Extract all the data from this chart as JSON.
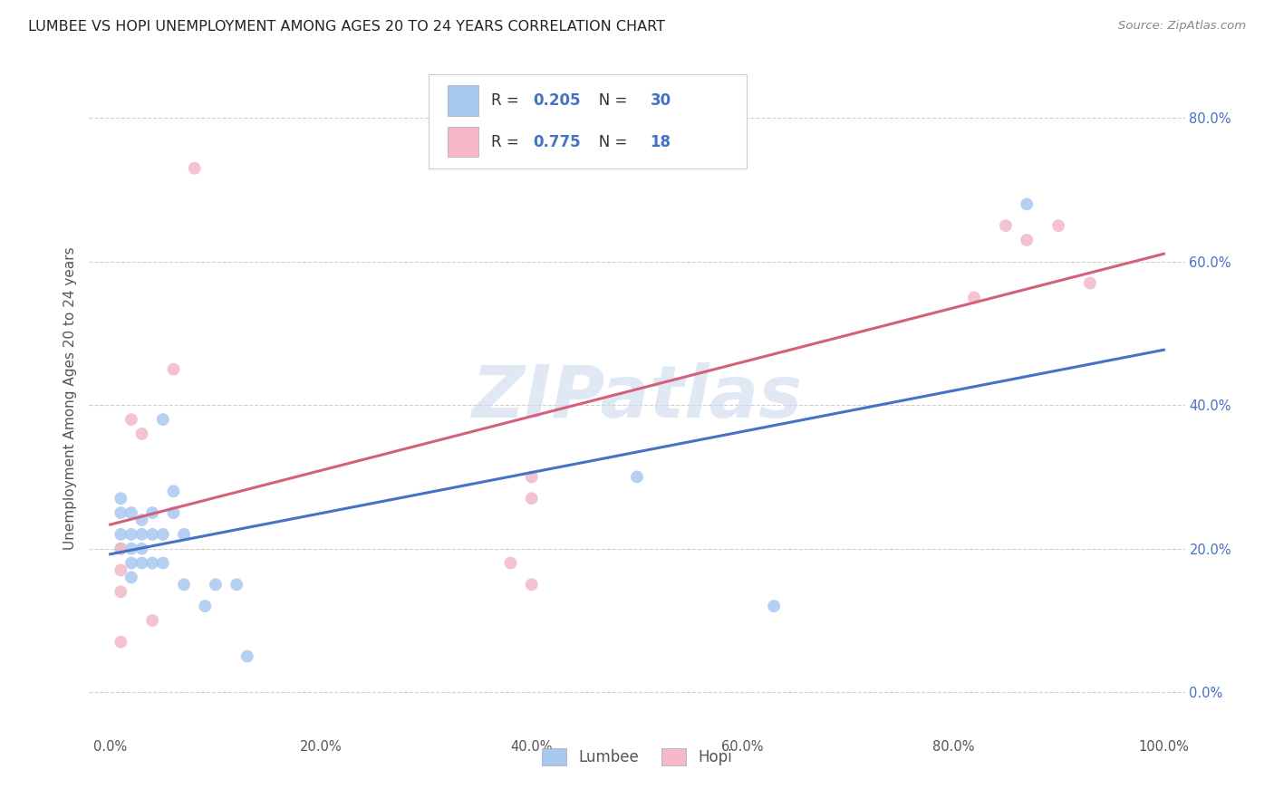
{
  "title": "LUMBEE VS HOPI UNEMPLOYMENT AMONG AGES 20 TO 24 YEARS CORRELATION CHART",
  "source": "Source: ZipAtlas.com",
  "ylabel": "Unemployment Among Ages 20 to 24 years",
  "lumbee_x": [
    0.01,
    0.01,
    0.01,
    0.01,
    0.02,
    0.02,
    0.02,
    0.02,
    0.02,
    0.03,
    0.03,
    0.03,
    0.03,
    0.04,
    0.04,
    0.04,
    0.05,
    0.05,
    0.05,
    0.06,
    0.06,
    0.07,
    0.07,
    0.09,
    0.1,
    0.12,
    0.13,
    0.5,
    0.63,
    0.87
  ],
  "lumbee_y": [
    0.27,
    0.25,
    0.22,
    0.2,
    0.25,
    0.22,
    0.2,
    0.18,
    0.16,
    0.24,
    0.22,
    0.2,
    0.18,
    0.25,
    0.22,
    0.18,
    0.38,
    0.22,
    0.18,
    0.28,
    0.25,
    0.22,
    0.15,
    0.12,
    0.15,
    0.15,
    0.05,
    0.3,
    0.12,
    0.68
  ],
  "hopi_x": [
    0.01,
    0.01,
    0.01,
    0.01,
    0.02,
    0.03,
    0.04,
    0.06,
    0.08,
    0.38,
    0.4,
    0.4,
    0.4,
    0.82,
    0.85,
    0.87,
    0.9,
    0.93
  ],
  "hopi_y": [
    0.2,
    0.17,
    0.14,
    0.07,
    0.38,
    0.36,
    0.1,
    0.45,
    0.73,
    0.18,
    0.27,
    0.3,
    0.15,
    0.55,
    0.65,
    0.63,
    0.65,
    0.57
  ],
  "lumbee_color": "#a8c8f0",
  "hopi_color": "#f4b8c8",
  "lumbee_line_color": "#4472c4",
  "hopi_line_color": "#d4607a",
  "lumbee_R": "0.205",
  "lumbee_N": "30",
  "hopi_R": "0.775",
  "hopi_N": "18",
  "xlim": [
    -0.02,
    1.02
  ],
  "ylim": [
    -0.06,
    0.88
  ],
  "x_ticks": [
    0.0,
    0.2,
    0.4,
    0.6,
    0.8,
    1.0
  ],
  "x_tick_labels": [
    "0.0%",
    "20.0%",
    "40.0%",
    "60.0%",
    "80.0%",
    "100.0%"
  ],
  "y_ticks": [
    0.0,
    0.2,
    0.4,
    0.6,
    0.8
  ],
  "y_tick_labels": [
    "0.0%",
    "20.0%",
    "40.0%",
    "60.0%",
    "80.0%"
  ],
  "background_color": "#ffffff",
  "watermark": "ZIPatlas",
  "marker_size": 100,
  "grid_color": "#d0d0d0",
  "title_fontsize": 11.5,
  "tick_fontsize": 10.5,
  "ylabel_fontsize": 11
}
